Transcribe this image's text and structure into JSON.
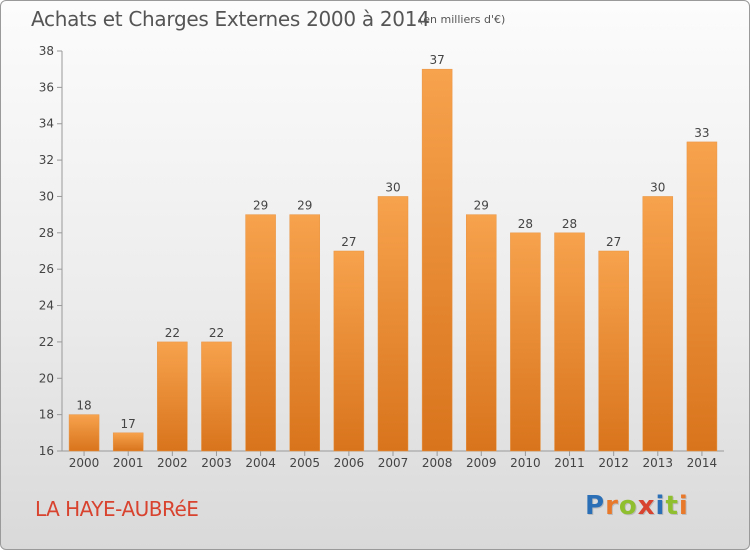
{
  "header": {
    "title": "Achats et Charges Externes 2000 à 2014",
    "unit": "(en milliers d'€)"
  },
  "footer": {
    "town": "LA HAYE-AUBRéE",
    "logo_letters": [
      "P",
      "r",
      "o",
      "x",
      "i",
      "t",
      "i"
    ],
    "logo_colors": [
      "#2b6fb7",
      "#e8792b",
      "#8fbf2e",
      "#d8432f",
      "#2b6fb7",
      "#8fbf2e",
      "#e8792b"
    ]
  },
  "chart_data": {
    "type": "bar",
    "categories": [
      "2000",
      "2001",
      "2002",
      "2003",
      "2004",
      "2005",
      "2006",
      "2007",
      "2008",
      "2009",
      "2010",
      "2011",
      "2012",
      "2013",
      "2014"
    ],
    "values": [
      18,
      17,
      22,
      22,
      29,
      29,
      27,
      30,
      37,
      29,
      28,
      28,
      27,
      30,
      33
    ],
    "ylim": [
      16,
      38
    ],
    "yticks": [
      16,
      18,
      20,
      22,
      24,
      26,
      28,
      30,
      32,
      34,
      36,
      38
    ],
    "grid": false,
    "bar_color_light": "#f7a24d",
    "bar_color_dark": "#d8741c"
  }
}
